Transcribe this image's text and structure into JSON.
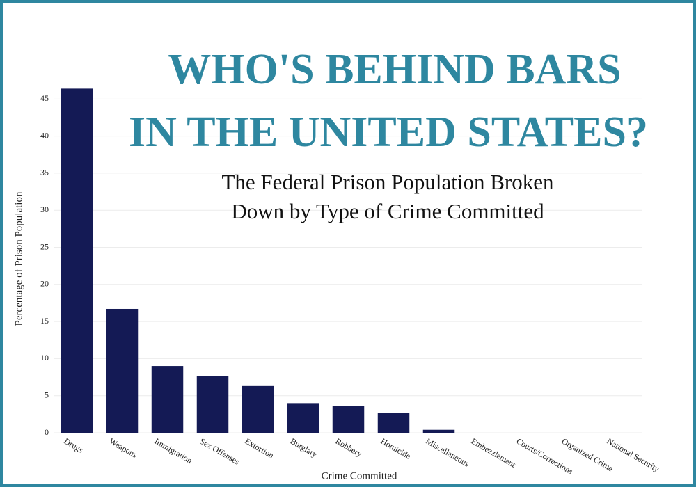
{
  "chart_data": {
    "type": "bar",
    "title": [
      "WHO'S BEHIND BARS",
      "IN THE UNITED STATES?"
    ],
    "subtitle": [
      "The Federal Prison Population Broken",
      "Down by Type of Crime Committed"
    ],
    "x_label": "Crime Committed",
    "y_label": "Percentage of Prison Population",
    "categories": [
      "Drugs",
      "Weapons",
      "Immigration",
      "Sex Offenses",
      "Extortion",
      "Burglary",
      "Robbery",
      "Homicide",
      "Miscellaneous",
      "Embezzlement",
      "Courts/Corrections",
      "Organized Crime",
      "National Security"
    ],
    "values": [
      46.4,
      16.7,
      9.0,
      7.6,
      6.3,
      4.0,
      3.6,
      2.7,
      0.4,
      0,
      0,
      0,
      0
    ],
    "color": "#141a55",
    "ylim": [
      0,
      47
    ],
    "yticks": [
      0,
      5,
      10,
      15,
      20,
      25,
      30,
      35,
      40,
      45
    ],
    "grid": true
  }
}
